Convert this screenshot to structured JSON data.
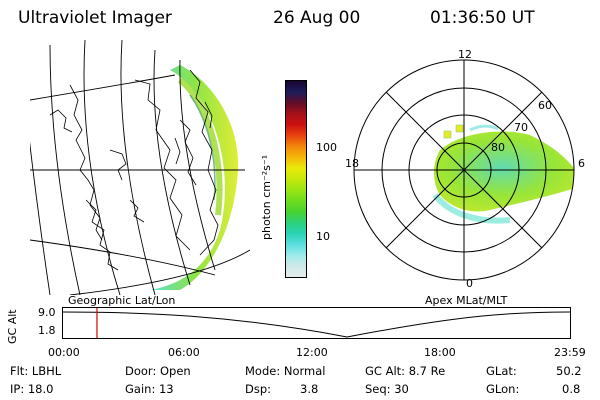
{
  "header": {
    "instrument": "Ultraviolet Imager",
    "date": "26 Aug 00",
    "time": "01:36:50 UT"
  },
  "geo_panel": {
    "label": "Geographic Lat/Lon"
  },
  "polar_panel": {
    "label": "Apex MLat/MLT",
    "mlt_labels": {
      "top": "12",
      "left": "18",
      "right": "6",
      "bottom": "0"
    },
    "lat_labels": [
      "60",
      "70",
      "80"
    ]
  },
  "colorbar": {
    "unit_label": "photon cm⁻²s⁻¹",
    "tick_labels": [
      "100",
      "10"
    ],
    "colors": [
      "#1a0533",
      "#1c1c5a",
      "#600d2a",
      "#a4121a",
      "#cc1010",
      "#e8420e",
      "#f2880c",
      "#f5b60a",
      "#e9e90a",
      "#c6e80d",
      "#9be513",
      "#6fdc1f",
      "#48d32f",
      "#2cd07a",
      "#2ad3b4",
      "#5bdede",
      "#9eeaea",
      "#cfe9e9",
      "#e6ecec"
    ]
  },
  "altitude_plot": {
    "ylabel": "GC Alt",
    "yticks": [
      "9.0",
      "1.8"
    ],
    "xticks": [
      "00:00",
      "06:00",
      "12:00",
      "18:00",
      "23:59"
    ],
    "current_time_frac": 0.067
  },
  "info": {
    "flt": "Flt: LBHL",
    "ip": "IP: 18.0",
    "door": "Door: Open",
    "gain": "Gain: 13",
    "mode": "Mode: Normal",
    "dsp_label": "Dsp:",
    "dsp_value": "3.8",
    "gc_alt": "GC Alt: 8.7 Re",
    "seq": "Seq: 30",
    "glat_label": "GLat:",
    "glat_value": "50.2",
    "glon_label": "GLon:",
    "glon_value": "0.8"
  }
}
